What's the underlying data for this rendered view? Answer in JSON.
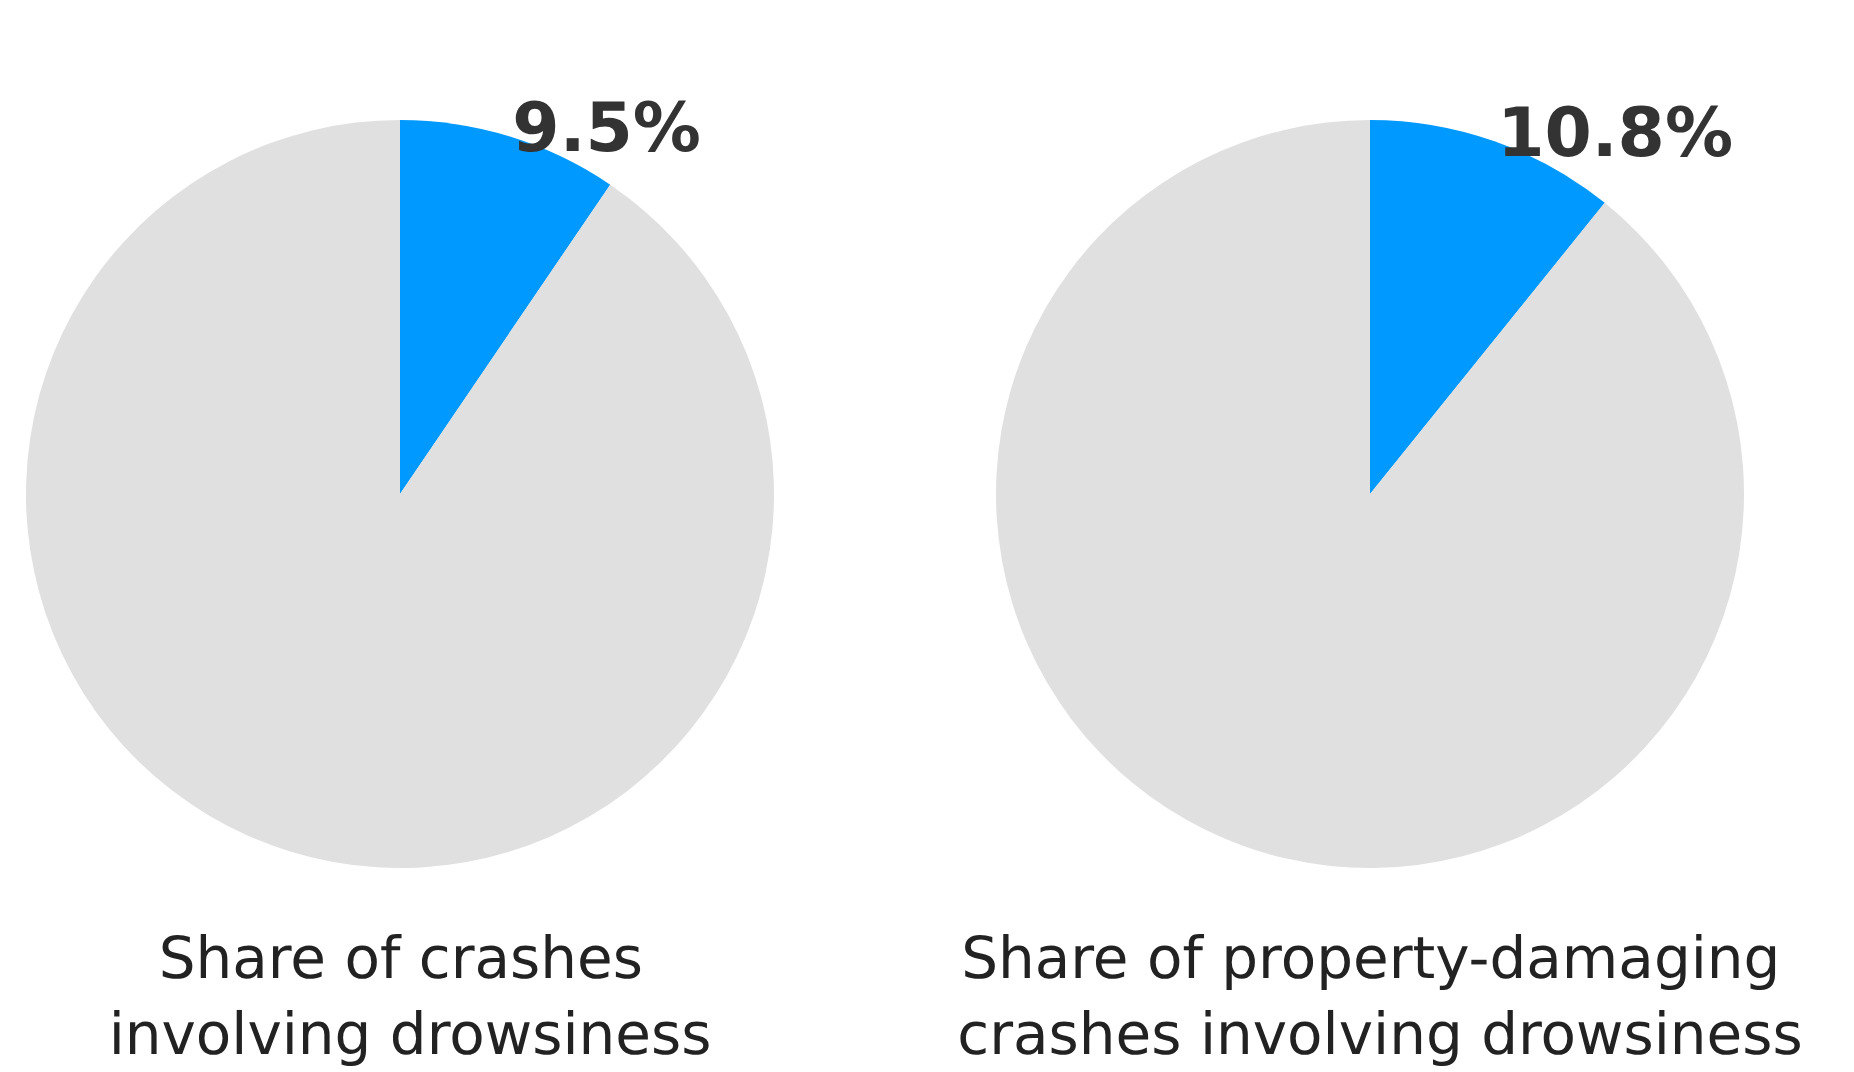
{
  "chart_data": [
    {
      "type": "pie",
      "title": "Share of crashes involving drowsiness",
      "categories": [
        null,
        null
      ],
      "values": [
        9.5,
        90.5
      ],
      "colors": [
        "#0099ff",
        "#e0e0e0"
      ],
      "value_labels": [
        "9.5%",
        null
      ]
    },
    {
      "type": "pie",
      "title": "Share of property-damaging crashes involving drowsiness",
      "categories": [
        null,
        null
      ],
      "values": [
        10.8,
        89.2
      ],
      "colors": [
        "#0099ff",
        "#e0e0e0"
      ],
      "value_labels": [
        "10.8%",
        null
      ]
    }
  ]
}
